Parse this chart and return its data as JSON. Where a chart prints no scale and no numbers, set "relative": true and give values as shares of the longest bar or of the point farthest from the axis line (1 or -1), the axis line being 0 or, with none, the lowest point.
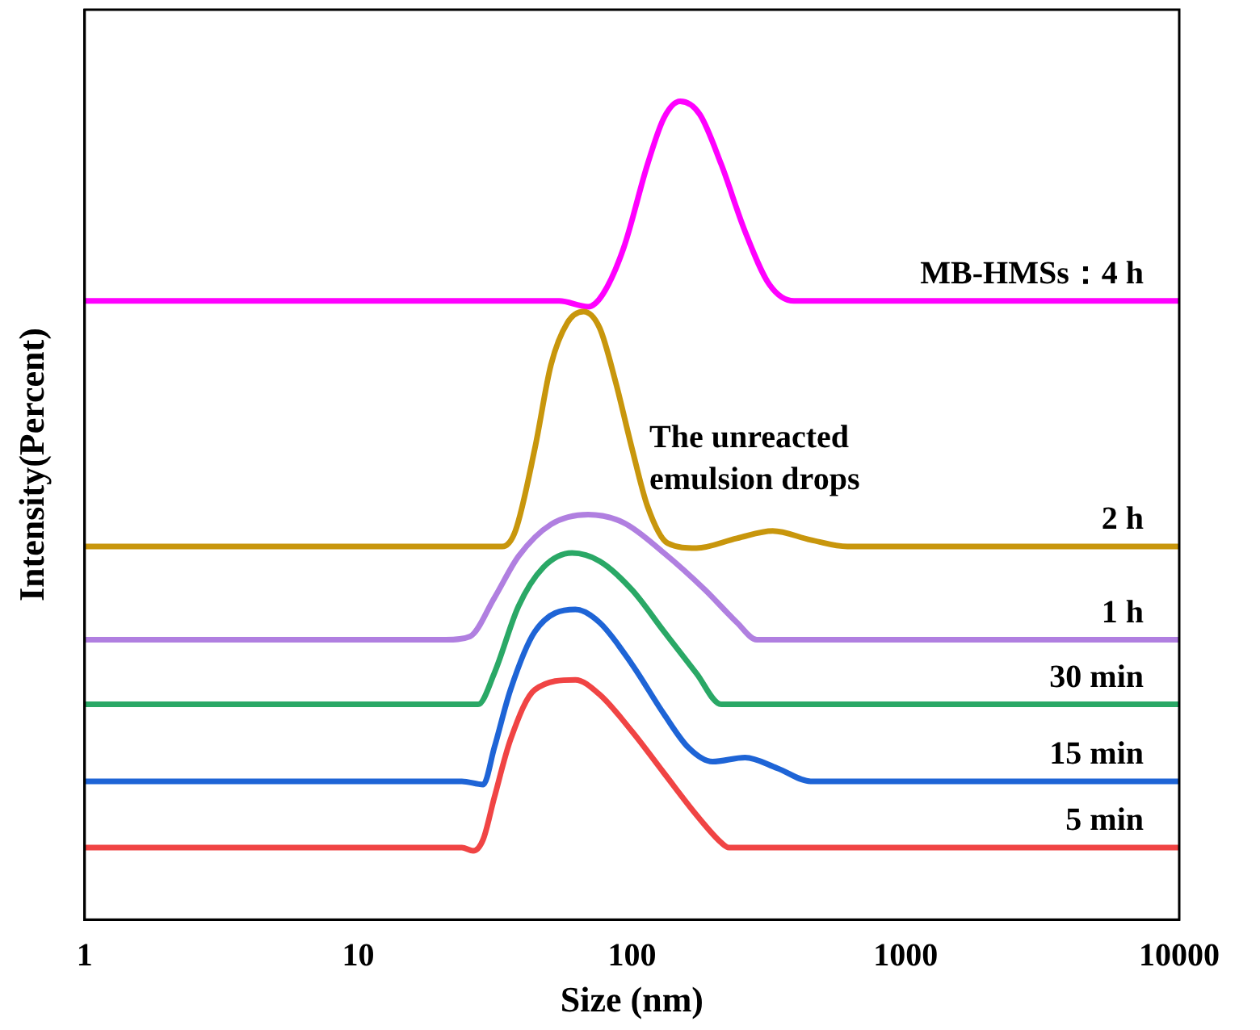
{
  "chart_data": {
    "type": "line",
    "xlabel": "Size (nm)",
    "ylabel": "Intensity(Percent)",
    "relative": true,
    "log": "x",
    "xlim": [
      1,
      10000
    ],
    "xticks": [
      1,
      10,
      100,
      1000,
      10000
    ],
    "grid": false,
    "legend": false,
    "marker": "none",
    "annotations": [
      "The unreacted emulsion drops"
    ],
    "series": [
      {
        "name": "5 min",
        "color": "#f04444",
        "x": [
          1,
          23.9,
          26.3,
          28.6,
          31.4,
          36.0,
          44.2,
          62.1,
          76.2,
          100,
          131,
          172,
          212,
          226,
          10000
        ],
        "values": [
          0.088,
          0.088,
          0.084,
          0.098,
          0.149,
          0.22,
          0.281,
          0.293,
          0.275,
          0.23,
          0.179,
          0.128,
          0.094,
          0.088,
          0.088
        ]
      },
      {
        "name": "15 min",
        "color": "#1e64d6",
        "x": [
          1,
          23.9,
          28.6,
          31.4,
          36.0,
          44.2,
          62.1,
          76.2,
          100,
          131,
          161,
          197,
          259,
          340,
          450,
          10000
        ],
        "values": [
          0.169,
          0.169,
          0.165,
          0.21,
          0.281,
          0.352,
          0.379,
          0.363,
          0.312,
          0.251,
          0.21,
          0.193,
          0.198,
          0.185,
          0.169,
          0.169
        ]
      },
      {
        "name": "30 min",
        "color": "#2aa866",
        "x": [
          1,
          27.4,
          31.4,
          38.5,
          47.3,
          60.4,
          76.2,
          100,
          131,
          172,
          212,
          10000
        ],
        "values": [
          0.263,
          0.263,
          0.301,
          0.383,
          0.43,
          0.448,
          0.438,
          0.403,
          0.352,
          0.301,
          0.263,
          0.263
        ]
      },
      {
        "name": "1 h",
        "color": "#b07fe0",
        "x": [
          1,
          20.9,
          25.6,
          31.4,
          38.5,
          50.6,
          69.2,
          93.3,
          131,
          185,
          242,
          286,
          10000
        ],
        "values": [
          0.342,
          0.342,
          0.346,
          0.393,
          0.444,
          0.483,
          0.495,
          0.485,
          0.448,
          0.403,
          0.363,
          0.342,
          0.342
        ]
      },
      {
        "name": "2 h",
        "color": "#c8960c",
        "x": [
          1,
          33.6,
          37.5,
          44.2,
          50.6,
          58,
          66.5,
          76.2,
          87,
          100,
          114,
          135,
          172,
          242,
          327,
          450,
          613,
          10000
        ],
        "values": [
          0.456,
          0.456,
          0.475,
          0.576,
          0.678,
          0.729,
          0.743,
          0.723,
          0.658,
          0.576,
          0.505,
          0.46,
          0.454,
          0.466,
          0.475,
          0.464,
          0.456,
          0.456
        ]
      },
      {
        "name": "MB-HMSs：4 h",
        "color": "#ff00ff",
        "x": [
          1,
          54.2,
          69.2,
          78.2,
          93.3,
          114,
          131,
          150,
          177,
          212,
          259,
          318,
          391,
          10000
        ],
        "values": [
          0.756,
          0.756,
          0.749,
          0.764,
          0.821,
          0.923,
          0.98,
          1,
          0.984,
          0.923,
          0.841,
          0.776,
          0.756,
          0.756
        ]
      }
    ]
  }
}
